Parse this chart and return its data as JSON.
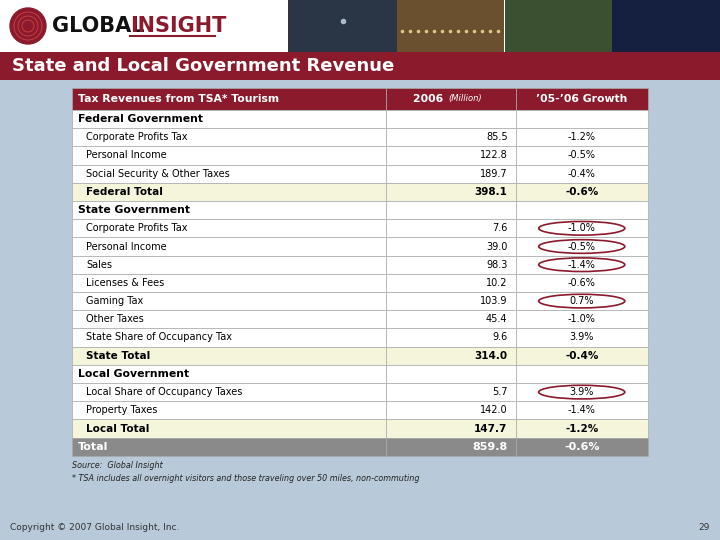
{
  "title": "State and Local Government Revenue",
  "rows": [
    {
      "label": "Tax Revenues from TSA* Tourism",
      "type": "header",
      "value": "2006 (Million)",
      "growth": "’05-’06 Growth"
    },
    {
      "label": "Federal Government",
      "type": "section",
      "value": "",
      "growth": ""
    },
    {
      "label": "Corporate Profits Tax",
      "type": "data",
      "value": "85.5",
      "growth": "-1.2%"
    },
    {
      "label": "Personal Income",
      "type": "data",
      "value": "122.8",
      "growth": "-0.5%"
    },
    {
      "label": "Social Security & Other Taxes",
      "type": "data",
      "value": "189.7",
      "growth": "-0.4%"
    },
    {
      "label": "Federal Total",
      "type": "subtotal",
      "value": "398.1",
      "growth": "-0.6%"
    },
    {
      "label": "State Government",
      "type": "section",
      "value": "",
      "growth": ""
    },
    {
      "label": "Corporate Profits Tax",
      "type": "data",
      "value": "7.6",
      "growth": "-1.0%",
      "circle_growth": true
    },
    {
      "label": "Personal Income",
      "type": "data",
      "value": "39.0",
      "growth": "-0.5%",
      "circle_growth": true
    },
    {
      "label": "Sales",
      "type": "data",
      "value": "98.3",
      "growth": "-1.4%",
      "circle_growth": true
    },
    {
      "label": "Licenses & Fees",
      "type": "data",
      "value": "10.2",
      "growth": "-0.6%"
    },
    {
      "label": "Gaming Tax",
      "type": "data",
      "value": "103.9",
      "growth": "0.7%",
      "circle_growth": true
    },
    {
      "label": "Other Taxes",
      "type": "data",
      "value": "45.4",
      "growth": "-1.0%"
    },
    {
      "label": "State Share of Occupancy Tax",
      "type": "data",
      "value": "9.6",
      "growth": "3.9%"
    },
    {
      "label": "State Total",
      "type": "subtotal",
      "value": "314.0",
      "growth": "-0.4%"
    },
    {
      "label": "Local Government",
      "type": "section",
      "value": "",
      "growth": ""
    },
    {
      "label": "Local Share of Occupancy Taxes",
      "type": "data",
      "value": "5.7",
      "growth": "3.9%",
      "circle_growth": true
    },
    {
      "label": "Property Taxes",
      "type": "data",
      "value": "142.0",
      "growth": "-1.4%"
    },
    {
      "label": "Local Total",
      "type": "subtotal",
      "value": "147.7",
      "growth": "-1.2%"
    },
    {
      "label": "Total",
      "type": "total",
      "value": "859.8",
      "growth": "-0.6%"
    }
  ],
  "source_lines": [
    "Source:  Global Insight",
    "* TSA includes all overnight visitors and those traveling over 50 miles, non-commuting"
  ],
  "copyright": "Copyright © 2007 Global Insight, Inc.",
  "page_num": "29",
  "header_bg": "#8B1A2C",
  "section_bg": "#FFFFFF",
  "data_bg": "#FFFFFF",
  "subtotal_bg": "#F5F5DC",
  "total_bg": "#8A8A8A",
  "title_bg": "#8B1A2C",
  "bg_color": "#B8CAD9",
  "photo_bg": "#556677",
  "logo_bg": "#FFFFFF",
  "header_text_color": "#FFFFFF",
  "section_text_color": "#000000",
  "data_text_color": "#000000",
  "subtotal_text_color": "#000000",
  "total_text_color": "#FFFFFF",
  "circle_color": "#8B1A2C",
  "grid_color": "#AAAAAA"
}
